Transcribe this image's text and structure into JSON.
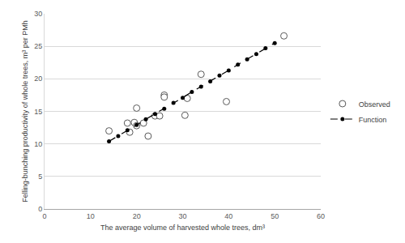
{
  "chart_data": {
    "type": "scatter",
    "x_label": "The average volume of harvested whole trees, dm³",
    "y_label": "Felling-bunching productivity of whole trees, m³ per PMh",
    "xlim": [
      0,
      60
    ],
    "xticks": [
      0,
      10,
      20,
      30,
      40,
      50,
      60
    ],
    "ylim": [
      0,
      30
    ],
    "yticks": [
      0,
      5,
      10,
      15,
      20,
      25,
      30
    ],
    "grid": true,
    "legend": "right",
    "series": [
      {
        "name": "Observed",
        "type": "scatter",
        "marker": "open circle",
        "color": "#595959",
        "x": [
          14,
          18,
          18.5,
          19.5,
          20,
          20,
          21.5,
          22.5,
          24,
          25,
          26,
          26,
          30.5,
          31,
          34,
          39.5,
          52
        ],
        "values": [
          12,
          13.2,
          11.8,
          13.3,
          15.5,
          12.8,
          13.2,
          11.2,
          14.3,
          14.3,
          17.5,
          17.2,
          14.4,
          17,
          20.7,
          16.5,
          26.6
        ]
      },
      {
        "name": "Function",
        "type": "line",
        "marker": "circle",
        "line_style": "dashed",
        "color": "#000000",
        "x": [
          14,
          16,
          18,
          20,
          22,
          24,
          26,
          28,
          30,
          32,
          34,
          36,
          38,
          40,
          42,
          44,
          46,
          48,
          50
        ],
        "values": [
          10.4,
          11.2,
          12.1,
          12.9,
          13.8,
          14.6,
          15.4,
          16.3,
          17.1,
          18.0,
          18.8,
          19.6,
          20.5,
          21.3,
          22.2,
          23.0,
          23.8,
          24.7,
          25.5
        ]
      }
    ]
  }
}
